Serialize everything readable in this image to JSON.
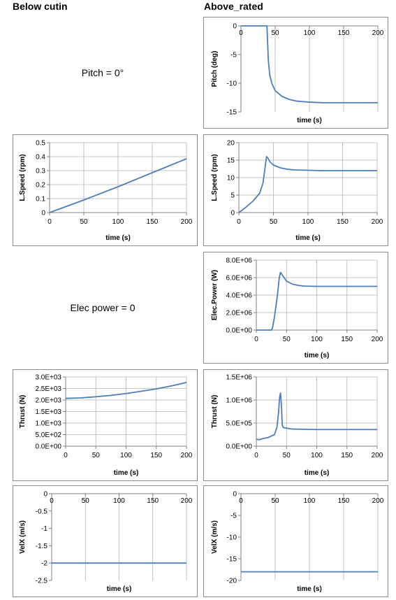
{
  "headers": {
    "left": "Below cutin",
    "right": "Above_rated"
  },
  "notes": {
    "pitch": "Pitch = 0°",
    "power": "Elec power = 0"
  },
  "style": {
    "line_color": "#4a7ebb",
    "grid_color": "#b3b3b3",
    "axis_color": "#808080"
  },
  "chart_data": [
    {
      "id": "pitch_above",
      "type": "line",
      "xlabel": "time (s)",
      "ylabel": "Pitch (deg)",
      "xlim": [
        0,
        200
      ],
      "ylim": [
        -15,
        0
      ],
      "xticks": [
        0,
        50,
        100,
        150,
        200
      ],
      "xtick_labels": [
        "0",
        "50",
        "100",
        "150",
        "200"
      ],
      "yticks": [
        0,
        -5,
        -10,
        -15
      ],
      "ytick_labels": [
        "0",
        "-5",
        "-10",
        "-15"
      ],
      "xaxis_at_top": true,
      "grid": "vertical",
      "series": [
        {
          "x": [
            0,
            38,
            39,
            40,
            42,
            45,
            50,
            60,
            70,
            80,
            90,
            100,
            120,
            150,
            200
          ],
          "y": [
            0,
            0,
            -3,
            -6,
            -8.5,
            -10,
            -11.3,
            -12.3,
            -12.8,
            -13.1,
            -13.2,
            -13.3,
            -13.4,
            -13.4,
            -13.4
          ]
        }
      ]
    },
    {
      "id": "lspeed_below",
      "type": "line",
      "xlabel": "time (s)",
      "ylabel": "L.Speed (rpm)",
      "xlim": [
        0,
        200
      ],
      "ylim": [
        0,
        0.5
      ],
      "xticks": [
        0,
        50,
        100,
        150,
        200
      ],
      "xtick_labels": [
        "0",
        "50",
        "100",
        "150",
        "200"
      ],
      "yticks": [
        0,
        0.1,
        0.2,
        0.3,
        0.4,
        0.5
      ],
      "ytick_labels": [
        "0",
        "0.1",
        "0.2",
        "0.3",
        "0.4",
        "0.5"
      ],
      "xaxis_at_top": false,
      "grid": "both",
      "series": [
        {
          "x": [
            0,
            50,
            100,
            150,
            200
          ],
          "y": [
            0,
            0.09,
            0.185,
            0.285,
            0.385
          ]
        }
      ]
    },
    {
      "id": "lspeed_above",
      "type": "line",
      "xlabel": "time (s)",
      "ylabel": "L.Speed (rpm)",
      "xlim": [
        0,
        200
      ],
      "ylim": [
        0,
        20
      ],
      "xticks": [
        0,
        50,
        100,
        150,
        200
      ],
      "xtick_labels": [
        "0",
        "50",
        "100",
        "150",
        "200"
      ],
      "yticks": [
        0,
        5,
        10,
        15,
        20
      ],
      "ytick_labels": [
        "0",
        "5",
        "10",
        "15",
        "20"
      ],
      "xaxis_at_top": false,
      "grid": "both",
      "series": [
        {
          "x": [
            0,
            10,
            20,
            30,
            35,
            38,
            40,
            42,
            45,
            50,
            60,
            70,
            80,
            100,
            120,
            150,
            200
          ],
          "y": [
            0,
            1.5,
            3.2,
            5.5,
            8.5,
            13,
            16,
            15.6,
            14.5,
            13.6,
            12.8,
            12.4,
            12.2,
            12.1,
            12,
            12,
            12
          ]
        }
      ]
    },
    {
      "id": "power_above",
      "type": "line",
      "xlabel": "time (s)",
      "ylabel": "Elec.Power (W)",
      "xlim": [
        0,
        200
      ],
      "ylim": [
        0,
        8000000
      ],
      "xticks": [
        0,
        50,
        100,
        150,
        200
      ],
      "xtick_labels": [
        "0",
        "50",
        "100",
        "150",
        "200"
      ],
      "yticks": [
        0,
        2000000,
        4000000,
        6000000,
        8000000
      ],
      "ytick_labels": [
        "0.0E+00",
        "2.0E+06",
        "4.0E+06",
        "6.0E+06",
        "8.0E+06"
      ],
      "xaxis_at_top": false,
      "grid": "both",
      "series": [
        {
          "x": [
            0,
            25,
            27,
            30,
            35,
            38,
            40,
            45,
            50,
            60,
            70,
            80,
            100,
            150,
            200
          ],
          "y": [
            0,
            0,
            300000,
            1500000,
            4000000,
            6000000,
            6600000,
            6100000,
            5600000,
            5250000,
            5100000,
            5030000,
            5000000,
            5000000,
            5000000
          ]
        }
      ]
    },
    {
      "id": "thrust_below",
      "type": "line",
      "xlabel": "time (s)",
      "ylabel": "Thrust (N)",
      "xlim": [
        0,
        200
      ],
      "ylim": [
        0,
        3000
      ],
      "xticks": [
        0,
        50,
        100,
        150,
        200
      ],
      "xtick_labels": [
        "0",
        "50",
        "100",
        "150",
        "200"
      ],
      "yticks": [
        0,
        500,
        1000,
        1500,
        2000,
        2500,
        3000
      ],
      "ytick_labels": [
        "0.0E+00",
        "5.0E+02",
        "1.0E+03",
        "1.5E+03",
        "2.0E+03",
        "2.5E+03",
        "3.0E+03"
      ],
      "xaxis_at_top": false,
      "grid": "both",
      "series": [
        {
          "x": [
            0,
            25,
            50,
            75,
            100,
            125,
            150,
            175,
            200
          ],
          "y": [
            2070,
            2090,
            2140,
            2200,
            2280,
            2380,
            2480,
            2610,
            2760
          ]
        }
      ]
    },
    {
      "id": "thrust_above",
      "type": "line",
      "xlabel": "time (s)",
      "ylabel": "Thrust (N)",
      "xlim": [
        0,
        200
      ],
      "ylim": [
        0,
        1500000
      ],
      "xticks": [
        0,
        50,
        100,
        150,
        200
      ],
      "xtick_labels": [
        "0",
        "50",
        "100",
        "150",
        "200"
      ],
      "yticks": [
        0,
        500000,
        1000000,
        1500000
      ],
      "ytick_labels": [
        "0.0E+00",
        "5.0E+05",
        "1.0E+06",
        "1.5E+06"
      ],
      "xaxis_at_top": false,
      "grid": "both",
      "series": [
        {
          "x": [
            0,
            5,
            10,
            20,
            30,
            34,
            37,
            38.5,
            40,
            41.5,
            43,
            45,
            50,
            60,
            80,
            100,
            150,
            200
          ],
          "y": [
            150000,
            140000,
            160000,
            190000,
            250000,
            400000,
            750000,
            1050000,
            1150000,
            900000,
            450000,
            400000,
            390000,
            370000,
            365000,
            360000,
            360000,
            360000
          ]
        }
      ]
    },
    {
      "id": "velx_below",
      "type": "line",
      "xlabel": "time (s)",
      "ylabel": "VelX (m/s)",
      "xlim": [
        0,
        200
      ],
      "ylim": [
        -2.5,
        0
      ],
      "xticks": [
        0,
        50,
        100,
        150,
        200
      ],
      "xtick_labels": [
        "0",
        "50",
        "100",
        "150",
        "200"
      ],
      "yticks": [
        0,
        -0.5,
        -1,
        -1.5,
        -2,
        -2.5
      ],
      "ytick_labels": [
        "0",
        "-0.5",
        "-1",
        "-1.5",
        "-2",
        "-2.5"
      ],
      "xaxis_at_top": true,
      "grid": "vertical",
      "series": [
        {
          "x": [
            0,
            200
          ],
          "y": [
            -2,
            -2
          ]
        }
      ]
    },
    {
      "id": "velx_above",
      "type": "line",
      "xlabel": "time (s)",
      "ylabel": "VelX (m/s)",
      "xlim": [
        0,
        200
      ],
      "ylim": [
        -20,
        0
      ],
      "xticks": [
        0,
        50,
        100,
        150,
        200
      ],
      "xtick_labels": [
        "0",
        "50",
        "100",
        "150",
        "200"
      ],
      "yticks": [
        0,
        -5,
        -10,
        -15,
        -20
      ],
      "ytick_labels": [
        "0",
        "-5",
        "-10",
        "-15",
        "-20"
      ],
      "xaxis_at_top": true,
      "grid": "vertical",
      "series": [
        {
          "x": [
            0,
            200
          ],
          "y": [
            -18,
            -18
          ]
        }
      ]
    }
  ]
}
